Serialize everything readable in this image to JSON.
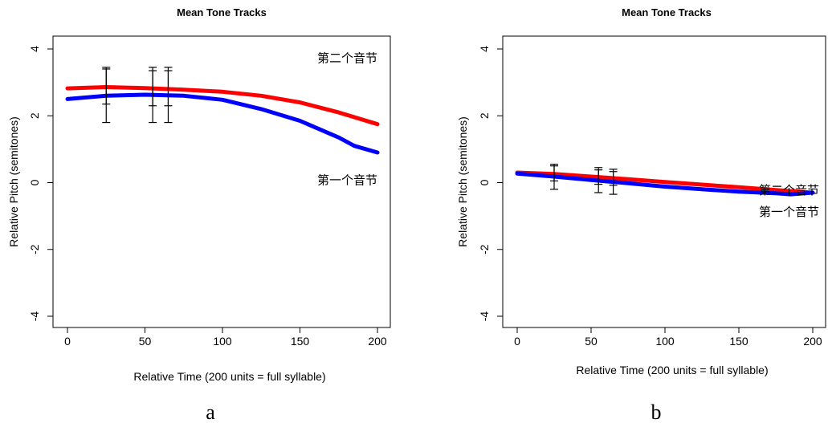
{
  "chart_data": [
    {
      "type": "line",
      "panel_label": "a",
      "title": "Mean Tone Tracks",
      "xlabel": "Relative Time (200 units = full syllable)",
      "ylabel": "Relative Pitch (semitones)",
      "xlim": [
        0,
        200
      ],
      "ylim": [
        -4,
        4
      ],
      "xticks": [
        0,
        50,
        100,
        150,
        200
      ],
      "yticks": [
        -4,
        -2,
        0,
        2,
        4
      ],
      "colors": {
        "series1": "#ff0000",
        "series2": "#0000ff"
      },
      "series": [
        {
          "name": "第一个音节",
          "x": [
            0,
            25,
            50,
            75,
            100,
            125,
            150,
            175,
            200
          ],
          "y": [
            2.82,
            2.86,
            2.83,
            2.78,
            2.72,
            2.6,
            2.4,
            2.1,
            1.75
          ]
        },
        {
          "name": "第二个音节",
          "x": [
            0,
            25,
            50,
            75,
            100,
            125,
            150,
            175,
            185,
            200
          ],
          "y": [
            2.5,
            2.6,
            2.63,
            2.6,
            2.48,
            2.2,
            1.85,
            1.35,
            1.1,
            0.9
          ]
        }
      ],
      "error_bars": [
        {
          "x": 25,
          "low": 1.8,
          "high": 3.45
        },
        {
          "x": 25,
          "low": 2.35,
          "high": 3.4
        },
        {
          "x": 55,
          "low": 1.8,
          "high": 3.45
        },
        {
          "x": 55,
          "low": 2.3,
          "high": 3.35
        },
        {
          "x": 65,
          "low": 1.8,
          "high": 3.45
        },
        {
          "x": 65,
          "low": 2.3,
          "high": 3.35
        }
      ]
    },
    {
      "type": "line",
      "panel_label": "b",
      "title": "Mean Tone Tracks",
      "xlabel": "Relative Time (200 units = full syllable)",
      "ylabel": "Relative Pitch (semitones)",
      "xlim": [
        0,
        200
      ],
      "ylim": [
        -4,
        4
      ],
      "xticks": [
        0,
        50,
        100,
        150,
        200
      ],
      "yticks": [
        -4,
        -2,
        0,
        2,
        4
      ],
      "colors": {
        "series1": "#ff0000",
        "series2": "#0000ff"
      },
      "series": [
        {
          "name": "第一个音节",
          "x": [
            0,
            25,
            50,
            75,
            100,
            125,
            150,
            175,
            200
          ],
          "y": [
            0.3,
            0.26,
            0.18,
            0.1,
            0.02,
            -0.06,
            -0.14,
            -0.22,
            -0.3
          ]
        },
        {
          "name": "第二个音节",
          "x": [
            0,
            25,
            50,
            75,
            100,
            125,
            150,
            175,
            185,
            200
          ],
          "y": [
            0.27,
            0.18,
            0.08,
            -0.02,
            -0.12,
            -0.2,
            -0.27,
            -0.32,
            -0.35,
            -0.3
          ]
        }
      ],
      "error_bars": [
        {
          "x": 25,
          "low": -0.2,
          "high": 0.55
        },
        {
          "x": 25,
          "low": 0.05,
          "high": 0.5
        },
        {
          "x": 55,
          "low": -0.3,
          "high": 0.45
        },
        {
          "x": 55,
          "low": -0.05,
          "high": 0.38
        },
        {
          "x": 65,
          "low": -0.35,
          "high": 0.4
        },
        {
          "x": 65,
          "low": -0.08,
          "high": 0.33
        }
      ]
    }
  ]
}
